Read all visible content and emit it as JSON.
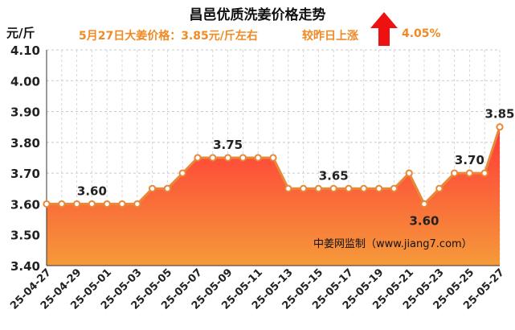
{
  "header": {
    "title": "昌邑优质洗姜价格走势",
    "price_note": "5月27日大姜价格：3.85元/斤左右",
    "compare_note": "较昨日上涨",
    "change_pct": "4.05%",
    "unit": "元/斤",
    "watermark": "中姜网监制（www.jiang7.com）"
  },
  "icons": {
    "trend": "up-arrow-icon"
  },
  "colors": {
    "line": "#e8893a",
    "fill_top": "#ff3838",
    "fill_bottom": "#f59a3a",
    "accent": "#f08a24",
    "arrow": "#ee1111"
  },
  "chart_data": {
    "type": "area",
    "title": "昌邑优质洗姜价格走势",
    "ylabel": "元/斤",
    "ylim": [
      3.4,
      4.1
    ],
    "yticks": [
      "3.40",
      "3.50",
      "3.60",
      "3.70",
      "3.80",
      "3.90",
      "4.00",
      "4.10"
    ],
    "grid": true,
    "x": [
      "25-04-27",
      "25-04-28",
      "25-04-29",
      "25-04-30",
      "25-05-01",
      "25-05-02",
      "25-05-03",
      "25-05-04",
      "25-05-05",
      "25-05-06",
      "25-05-07",
      "25-05-08",
      "25-05-09",
      "25-05-10",
      "25-05-11",
      "25-05-12",
      "25-05-13",
      "25-05-14",
      "25-05-15",
      "25-05-16",
      "25-05-17",
      "25-05-18",
      "25-05-19",
      "25-05-20",
      "25-05-21",
      "25-05-22",
      "25-05-23",
      "25-05-24",
      "25-05-25",
      "25-05-26",
      "25-05-27"
    ],
    "xtick_labels": [
      "25-04-27",
      "25-04-29",
      "25-05-01",
      "25-05-03",
      "25-05-05",
      "25-05-07",
      "25-05-09",
      "25-05-11",
      "25-05-13",
      "25-05-15",
      "25-05-17",
      "25-05-19",
      "25-05-21",
      "25-05-23",
      "25-05-25",
      "25-05-27"
    ],
    "values": [
      3.6,
      3.6,
      3.6,
      3.6,
      3.6,
      3.6,
      3.6,
      3.65,
      3.65,
      3.7,
      3.75,
      3.75,
      3.75,
      3.75,
      3.75,
      3.75,
      3.65,
      3.65,
      3.65,
      3.65,
      3.65,
      3.65,
      3.65,
      3.65,
      3.7,
      3.6,
      3.65,
      3.7,
      3.7,
      3.7,
      3.85
    ],
    "annotations": [
      {
        "index": 3,
        "text": "3.60",
        "pos": "above"
      },
      {
        "index": 12,
        "text": "3.75",
        "pos": "above"
      },
      {
        "index": 19,
        "text": "3.65",
        "pos": "above"
      },
      {
        "index": 25,
        "text": "3.60",
        "pos": "below"
      },
      {
        "index": 28,
        "text": "3.70",
        "pos": "above"
      },
      {
        "index": 30,
        "text": "3.85",
        "pos": "above"
      }
    ]
  }
}
